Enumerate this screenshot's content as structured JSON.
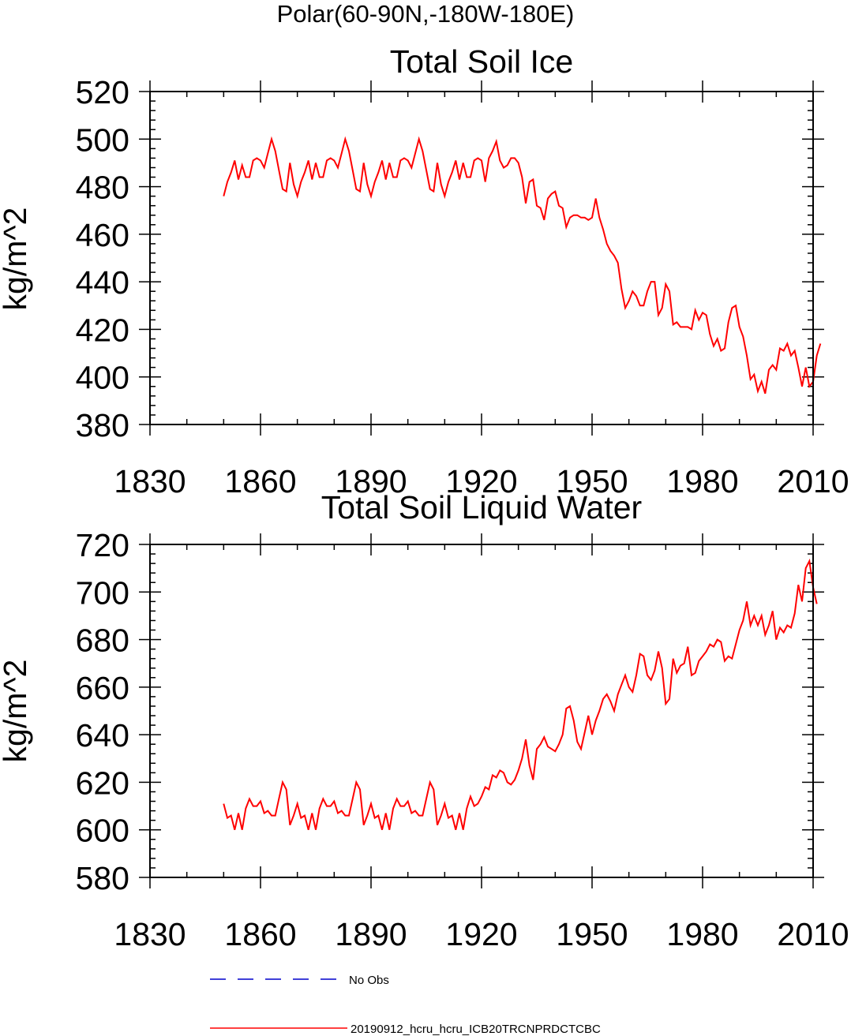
{
  "figure": {
    "suptitle": "Polar(60-90N,-180W-180E)"
  },
  "chart_data": [
    {
      "type": "line",
      "title": "Total Soil Ice",
      "xlabel": "",
      "ylabel": "kg/m^2",
      "xlim": [
        1830,
        2010
      ],
      "ylim": [
        380,
        520
      ],
      "xticks": [
        "1830",
        "1860",
        "1890",
        "1920",
        "1950",
        "1980",
        "2010"
      ],
      "yticks": [
        "380",
        "400",
        "420",
        "440",
        "460",
        "480",
        "500",
        "520"
      ],
      "series": [
        {
          "name": "20190912_hcru_hcru_ICB20TRCNPRDCTCBC",
          "color": "#ff0000",
          "x_start": 1850,
          "x_step": 1,
          "values": [
            476,
            482,
            486,
            491,
            483,
            489,
            484,
            484,
            491,
            492,
            491,
            488,
            494,
            500,
            495,
            487,
            479,
            478,
            490,
            481,
            476,
            482,
            486,
            491,
            483,
            490,
            484,
            484,
            491,
            492,
            491,
            488,
            494,
            500,
            495,
            487,
            479,
            478,
            490,
            481,
            476,
            482,
            486,
            491,
            483,
            490,
            484,
            484,
            491,
            492,
            491,
            488,
            494,
            500,
            495,
            487,
            479,
            478,
            490,
            481,
            476,
            482,
            486,
            491,
            483,
            490,
            484,
            484,
            491,
            492,
            491,
            482,
            492,
            495,
            499,
            491,
            488,
            489,
            492,
            492,
            490,
            484,
            473,
            482,
            483,
            472,
            471,
            466,
            475,
            477,
            478,
            472,
            471,
            463,
            467,
            468,
            468,
            467,
            467,
            466,
            467,
            475,
            467,
            462,
            456,
            453,
            451,
            448,
            437,
            429,
            432,
            436,
            434,
            430,
            430,
            436,
            440,
            440,
            426,
            429,
            439,
            436,
            422,
            423,
            421,
            421,
            421,
            420,
            428,
            424,
            427,
            426,
            418,
            413,
            416,
            411,
            412,
            423,
            429,
            430,
            421,
            417,
            409,
            399,
            401,
            394,
            398,
            393,
            403,
            405,
            403,
            412,
            411,
            414,
            409,
            411,
            404,
            396,
            404,
            396,
            398,
            409,
            414
          ]
        }
      ]
    },
    {
      "type": "line",
      "title": "Total Soil Liquid Water",
      "xlabel": "",
      "ylabel": "kg/m^2",
      "xlim": [
        1830,
        2010
      ],
      "ylim": [
        580,
        720
      ],
      "xticks": [
        "1830",
        "1860",
        "1890",
        "1920",
        "1950",
        "1980",
        "2010"
      ],
      "yticks": [
        "580",
        "600",
        "620",
        "640",
        "660",
        "680",
        "700",
        "720"
      ],
      "series": [
        {
          "name": "20190912_hcru_hcru_ICB20TRCNPRDCTCBC",
          "color": "#ff0000",
          "x_start": 1850,
          "x_step": 1,
          "values": [
            611,
            605,
            606,
            600,
            607,
            600,
            609,
            613,
            610,
            610,
            612,
            607,
            608,
            606,
            606,
            613,
            620,
            617,
            602,
            606,
            611,
            605,
            606,
            600,
            607,
            600,
            609,
            613,
            610,
            610,
            612,
            607,
            608,
            606,
            606,
            613,
            620,
            617,
            602,
            606,
            611,
            605,
            606,
            600,
            607,
            600,
            609,
            613,
            610,
            610,
            612,
            607,
            608,
            606,
            606,
            613,
            620,
            617,
            602,
            606,
            611,
            605,
            606,
            600,
            607,
            600,
            609,
            614,
            610,
            611,
            614,
            618,
            617,
            623,
            622,
            625,
            624,
            620,
            619,
            621,
            625,
            630,
            638,
            627,
            621,
            634,
            636,
            639,
            635,
            634,
            633,
            636,
            640,
            651,
            652,
            646,
            637,
            634,
            641,
            648,
            640,
            646,
            650,
            655,
            657,
            654,
            650,
            657,
            661,
            665,
            660,
            658,
            665,
            674,
            673,
            665,
            663,
            667,
            675,
            668,
            653,
            655,
            672,
            666,
            669,
            670,
            677,
            665,
            666,
            671,
            673,
            675,
            678,
            677,
            680,
            679,
            671,
            673,
            672,
            678,
            684,
            688,
            696,
            686,
            690,
            686,
            690,
            682,
            686,
            692,
            680,
            685,
            683,
            686,
            685,
            691,
            703,
            696,
            710,
            713,
            702,
            695
          ]
        }
      ]
    }
  ],
  "legend": {
    "entries": [
      {
        "label": "No Obs",
        "color": "#0000cc",
        "style": "dashed"
      },
      {
        "label": "20190912_hcru_hcru_ICB20TRCNPRDCTCBC",
        "color": "#ff0000",
        "style": "solid"
      }
    ]
  }
}
